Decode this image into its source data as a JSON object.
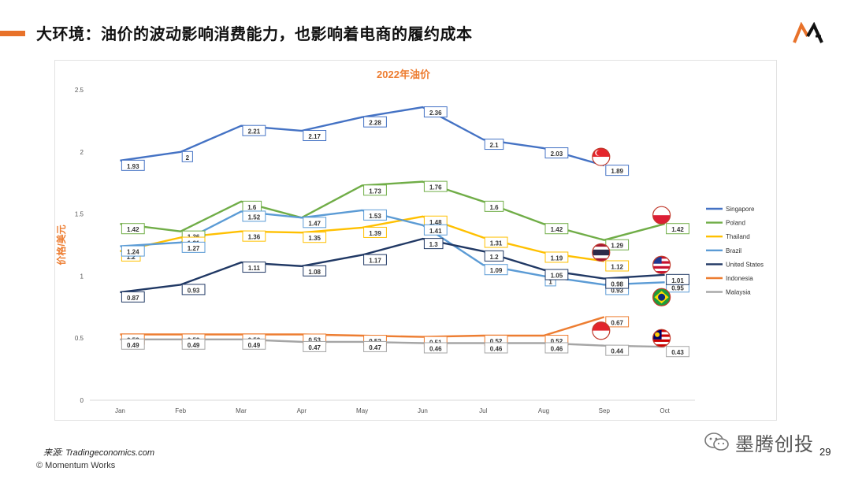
{
  "slide": {
    "title": "大环境：油价的波动影响消费能力，也影响着电商的履约成本",
    "source": "来源: Tradingeconomics.com",
    "copyright": "© Momentum Works",
    "page_number": "29",
    "brand": "墨腾创投",
    "logo": "MA"
  },
  "chart_data": {
    "type": "line",
    "title": "2022年油价",
    "ylabel": "价格/美元",
    "xlabel": "",
    "ylim": [
      0,
      2.5
    ],
    "yticks": [
      "0",
      "0.5",
      "1",
      "1.5",
      "2",
      "2.5"
    ],
    "ytick_values": [
      0,
      0.5,
      1,
      1.5,
      2,
      2.5
    ],
    "categories": [
      "Jan",
      "Feb",
      "Mar",
      "Apr",
      "May",
      "Jun",
      "Jul",
      "Aug",
      "Sep",
      "Oct"
    ],
    "legend_position": "right",
    "series": [
      {
        "name": "Singapore",
        "color": "#4472c4",
        "values": [
          1.93,
          2,
          2.21,
          2.17,
          2.28,
          2.36,
          2.1,
          2.03,
          1.89,
          null
        ],
        "labels": [
          "1.93",
          "2",
          "2.21",
          "2.17",
          "2.28",
          "2.36",
          "2.1",
          "2.03",
          "1.89",
          ""
        ]
      },
      {
        "name": "Poland",
        "color": "#70ad47",
        "values": [
          1.42,
          1.36,
          1.6,
          1.47,
          1.73,
          1.76,
          1.6,
          1.42,
          1.29,
          1.42
        ],
        "labels": [
          "1.42",
          "1.36",
          "1.6",
          "",
          "1.73",
          "1.76",
          "1.6",
          "1.42",
          "1.29",
          "1.42"
        ]
      },
      {
        "name": "Thailand",
        "color": "#ffc000",
        "values": [
          1.2,
          1.31,
          1.36,
          1.35,
          1.39,
          1.48,
          1.31,
          1.19,
          1.12,
          null
        ],
        "labels": [
          "1.2",
          "1.31",
          "1.36",
          "1.35",
          "1.39",
          "1.48",
          "1.31",
          "1.19",
          "1.12",
          ""
        ]
      },
      {
        "name": "Brazil",
        "color": "#5b9bd5",
        "values": [
          1.24,
          1.27,
          1.52,
          1.47,
          1.53,
          1.41,
          1.09,
          1,
          0.93,
          0.95
        ],
        "labels": [
          "1.24",
          "1.27",
          "1.52",
          "1.47",
          "1.53",
          "1.41",
          "1.09",
          "1",
          "0.93",
          "0.95"
        ]
      },
      {
        "name": "United States",
        "color": "#203864",
        "values": [
          0.87,
          0.93,
          1.11,
          1.08,
          1.17,
          1.3,
          1.2,
          1.05,
          0.98,
          1.01
        ],
        "labels": [
          "0.87",
          "0.93",
          "1.11",
          "1.08",
          "1.17",
          "1.3",
          "1.2",
          "1.05",
          "0.98",
          "1.01"
        ]
      },
      {
        "name": "Indonesia",
        "color": "#ed7d31",
        "values": [
          0.53,
          0.53,
          0.53,
          0.53,
          0.52,
          0.51,
          0.52,
          0.52,
          0.67,
          null
        ],
        "labels": [
          "0.53",
          "0.53",
          "0.53",
          "0.53",
          "0.52",
          "0.51",
          "0.52",
          "0.52",
          "0.67",
          ""
        ]
      },
      {
        "name": "Malaysia",
        "color": "#a5a5a5",
        "values": [
          0.49,
          0.49,
          0.49,
          0.47,
          0.47,
          0.46,
          0.46,
          0.46,
          0.44,
          0.43
        ],
        "labels": [
          "0.49",
          "0.49",
          "0.49",
          "0.47",
          "0.47",
          "0.46",
          "0.46",
          "0.46",
          "0.44",
          "0.43"
        ]
      }
    ],
    "flags": [
      {
        "name": "singapore-flag-icon",
        "at": [
          "Sep",
          1.96
        ]
      },
      {
        "name": "poland-flag-icon",
        "at": [
          "Oct",
          1.49
        ]
      },
      {
        "name": "thailand-flag-icon",
        "at": [
          "Sep",
          1.19
        ]
      },
      {
        "name": "united-states-flag-icon",
        "at": [
          "Oct",
          1.09
        ]
      },
      {
        "name": "brazil-flag-icon",
        "at": [
          "Oct",
          0.83
        ]
      },
      {
        "name": "indonesia-flag-icon",
        "at": [
          "Sep",
          0.56
        ]
      },
      {
        "name": "malaysia-flag-icon",
        "at": [
          "Oct",
          0.5
        ]
      }
    ]
  }
}
